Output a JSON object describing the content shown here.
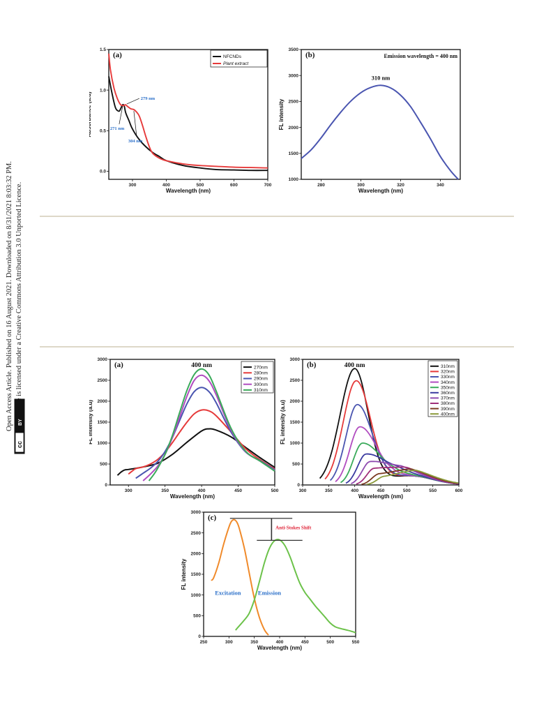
{
  "sidebar": {
    "line1": "Open Access Article. Published on 16 August 2021. Downloaded on 8/31/2021 8:03:32 PM.",
    "line2": "This article is licensed under a Creative Commons Attribution 3.0 Unported Licence.",
    "cc_badge": "cc",
    "by_badge": "BY"
  },
  "colors": {
    "black": "#111111",
    "red": "#e63a3a",
    "blue": "#4a55b0",
    "magenta": "#b14cc0",
    "green": "#3aaa5a",
    "annotation_blue": "#2a6fc9",
    "annotation_red": "#e0283c",
    "orange": "#f08a2a",
    "light_green": "#6cc24a"
  },
  "chart_data": [
    {
      "id": "fig1a",
      "type": "line",
      "panel": "(a)",
      "xlabel": "Wavelength (nm)",
      "ylabel": "Absorbance (a.u)",
      "xlim": [
        230,
        700
      ],
      "ylim": [
        -0.1,
        1.5
      ],
      "xticks": [
        300,
        400,
        500,
        600,
        700
      ],
      "yticks": [
        0.0,
        0.5,
        1.0,
        1.5
      ],
      "ytick_labels": [
        "0.0",
        "0.5",
        "1.0",
        "1.5"
      ],
      "legend": "top-right",
      "series": [
        {
          "name": "NFCNDs",
          "color": "#111111",
          "italic": false,
          "x": [
            230,
            240,
            250,
            260,
            265,
            271,
            276,
            280,
            290,
            300,
            320,
            340,
            360,
            380,
            400,
            450,
            500,
            550,
            600,
            650,
            700
          ],
          "y": [
            1.17,
            0.95,
            0.78,
            0.74,
            0.77,
            0.82,
            0.8,
            0.72,
            0.62,
            0.52,
            0.39,
            0.3,
            0.23,
            0.18,
            0.13,
            0.07,
            0.04,
            0.02,
            0.015,
            0.01,
            0.01
          ]
        },
        {
          "name": "Plant extract",
          "color": "#e63a3a",
          "italic": true,
          "x": [
            230,
            235,
            245,
            255,
            265,
            275,
            279,
            285,
            295,
            304,
            312,
            320,
            330,
            340,
            350,
            360,
            380,
            400,
            450,
            500,
            550,
            600,
            650,
            700
          ],
          "y": [
            1.45,
            1.25,
            1.03,
            0.9,
            0.82,
            0.81,
            0.82,
            0.8,
            0.77,
            0.76,
            0.73,
            0.68,
            0.56,
            0.42,
            0.3,
            0.22,
            0.16,
            0.13,
            0.09,
            0.07,
            0.06,
            0.05,
            0.045,
            0.04
          ]
        }
      ],
      "annotations": [
        {
          "text": "279 nm",
          "x": 279,
          "y": 0.82
        },
        {
          "text": "271 nm",
          "x": 271,
          "y": 0.82
        },
        {
          "text": "304 nm",
          "x": 304,
          "y": 0.76
        }
      ]
    },
    {
      "id": "fig1b",
      "type": "line",
      "panel": "(b)",
      "title": "Emission wavelength = 400 nm",
      "xlabel": "Wavelength (nm)",
      "ylabel": "FL intensity",
      "xlim": [
        270,
        350
      ],
      "ylim": [
        1000,
        3500
      ],
      "xticks": [
        280,
        300,
        320,
        340
      ],
      "yticks": [
        1000,
        1500,
        2000,
        2500,
        3000,
        3500
      ],
      "peak_label": "310 nm",
      "series": [
        {
          "color": "#4a55b0",
          "x": [
            270,
            275,
            280,
            285,
            290,
            295,
            300,
            305,
            310,
            315,
            320,
            325,
            330,
            335,
            340,
            345,
            349
          ],
          "y": [
            1400,
            1570,
            1800,
            2060,
            2300,
            2510,
            2670,
            2770,
            2810,
            2760,
            2620,
            2400,
            2100,
            1780,
            1440,
            1170,
            1000
          ]
        }
      ]
    },
    {
      "id": "fig2a",
      "type": "line",
      "panel": "(a)",
      "xlabel": "Wavelength (nm)",
      "ylabel": "FL intensity (a.u)",
      "xlim": [
        275,
        500
      ],
      "ylim": [
        0,
        3000
      ],
      "xticks": [
        300,
        350,
        400,
        450,
        500
      ],
      "yticks": [
        0,
        500,
        1000,
        1500,
        2000,
        2500,
        3000
      ],
      "peak_label": "400 nm",
      "legend": "top-right",
      "series": [
        {
          "name": "270nm",
          "color": "#111111",
          "x": [
            285,
            290,
            295,
            300,
            320,
            340,
            360,
            380,
            400,
            410,
            420,
            440,
            460,
            480,
            500
          ],
          "y": [
            230,
            310,
            360,
            370,
            430,
            520,
            730,
            1020,
            1290,
            1340,
            1310,
            1150,
            900,
            650,
            420
          ]
        },
        {
          "name": "280nm",
          "color": "#e63a3a",
          "x": [
            300,
            305,
            310,
            320,
            330,
            340,
            350,
            360,
            370,
            380,
            390,
            400,
            410,
            420,
            440,
            460,
            480,
            500
          ],
          "y": [
            260,
            330,
            390,
            430,
            500,
            610,
            780,
            1010,
            1260,
            1500,
            1700,
            1790,
            1770,
            1650,
            1270,
            870,
            600,
            380
          ]
        },
        {
          "name": "290nm",
          "color": "#4a55b0",
          "x": [
            310,
            320,
            330,
            340,
            350,
            360,
            370,
            380,
            390,
            400,
            410,
            420,
            440,
            460,
            480,
            500
          ],
          "y": [
            160,
            280,
            400,
            560,
            800,
            1130,
            1540,
            1940,
            2230,
            2330,
            2230,
            1960,
            1270,
            790,
            580,
            360
          ]
        },
        {
          "name": "300nm",
          "color": "#b14cc0",
          "x": [
            320,
            330,
            340,
            350,
            360,
            370,
            380,
            390,
            400,
            410,
            420,
            440,
            460,
            480,
            500
          ],
          "y": [
            100,
            260,
            450,
            730,
            1130,
            1620,
            2120,
            2500,
            2620,
            2490,
            2150,
            1320,
            800,
            570,
            340
          ]
        },
        {
          "name": "310nm",
          "color": "#3aaa5a",
          "x": [
            328,
            335,
            340,
            350,
            360,
            370,
            380,
            390,
            400,
            410,
            420,
            440,
            460,
            480,
            500
          ],
          "y": [
            100,
            260,
            400,
            730,
            1180,
            1730,
            2260,
            2640,
            2770,
            2630,
            2240,
            1360,
            810,
            570,
            330
          ]
        }
      ]
    },
    {
      "id": "fig2b",
      "type": "line",
      "panel": "(b)",
      "xlabel": "Wavelength (nm)",
      "ylabel": "FL intensity (a.u)",
      "xlim": [
        300,
        600
      ],
      "ylim": [
        0,
        3000
      ],
      "xticks": [
        300,
        350,
        400,
        450,
        500,
        550,
        600
      ],
      "yticks": [
        0,
        500,
        1000,
        1500,
        2000,
        2500,
        3000
      ],
      "peak_label": "400 nm",
      "legend": "top-right",
      "series": [
        {
          "name": "310nm",
          "color": "#111111",
          "start": 333,
          "peak": 2780,
          "peak_x": 400
        },
        {
          "name": "320nm",
          "color": "#e63a3a",
          "start": 343,
          "peak": 2490,
          "peak_x": 403
        },
        {
          "name": "330nm",
          "color": "#4a55b0",
          "start": 353,
          "peak": 1920,
          "peak_x": 405
        },
        {
          "name": "340nm",
          "color": "#b14cc0",
          "start": 363,
          "peak": 1390,
          "peak_x": 410
        },
        {
          "name": "350nm",
          "color": "#3aaa5a",
          "start": 373,
          "peak": 1000,
          "peak_x": 415
        },
        {
          "name": "360nm",
          "color": "#3a3aa0",
          "start": 383,
          "peak": 740,
          "peak_x": 422
        },
        {
          "name": "370nm",
          "color": "#8e4bb0",
          "start": 393,
          "peak": 560,
          "peak_x": 430
        },
        {
          "name": "380nm",
          "color": "#a0307a",
          "start": 403,
          "peak": 400,
          "peak_x": 438
        },
        {
          "name": "390nm",
          "color": "#7a3a20",
          "start": 413,
          "peak": 270,
          "peak_x": 448
        },
        {
          "name": "400nm",
          "color": "#8a9a3a",
          "start": 423,
          "peak": 210,
          "peak_x": 458
        }
      ]
    },
    {
      "id": "fig2c",
      "type": "line",
      "panel": "(c)",
      "xlabel": "Wavelength (nm)",
      "ylabel": "FL intensity",
      "xlim": [
        250,
        550
      ],
      "ylim": [
        0,
        3000
      ],
      "xticks": [
        250,
        300,
        350,
        400,
        450,
        500,
        550
      ],
      "yticks": [
        0,
        500,
        1000,
        1500,
        2000,
        2500,
        3000
      ],
      "annotation": "Anti-Stokes Shift",
      "series": [
        {
          "name": "Excitation",
          "color": "#f08a2a",
          "x": [
            265,
            270,
            280,
            290,
            300,
            305,
            310,
            315,
            320,
            330,
            340,
            350,
            360,
            370,
            378
          ],
          "y": [
            1350,
            1420,
            1780,
            2250,
            2640,
            2780,
            2820,
            2770,
            2620,
            2150,
            1530,
            920,
            460,
            160,
            30
          ]
        },
        {
          "name": "Emission",
          "color": "#6cc24a",
          "x": [
            313,
            320,
            330,
            340,
            350,
            360,
            370,
            380,
            390,
            400,
            410,
            420,
            430,
            440,
            450,
            460,
            470,
            480,
            490,
            500,
            510,
            520,
            530,
            540,
            550
          ],
          "y": [
            150,
            250,
            390,
            560,
            880,
            1320,
            1780,
            2130,
            2310,
            2330,
            2200,
            1940,
            1600,
            1280,
            1060,
            900,
            740,
            600,
            460,
            320,
            230,
            190,
            160,
            130,
            90
          ]
        }
      ]
    }
  ]
}
